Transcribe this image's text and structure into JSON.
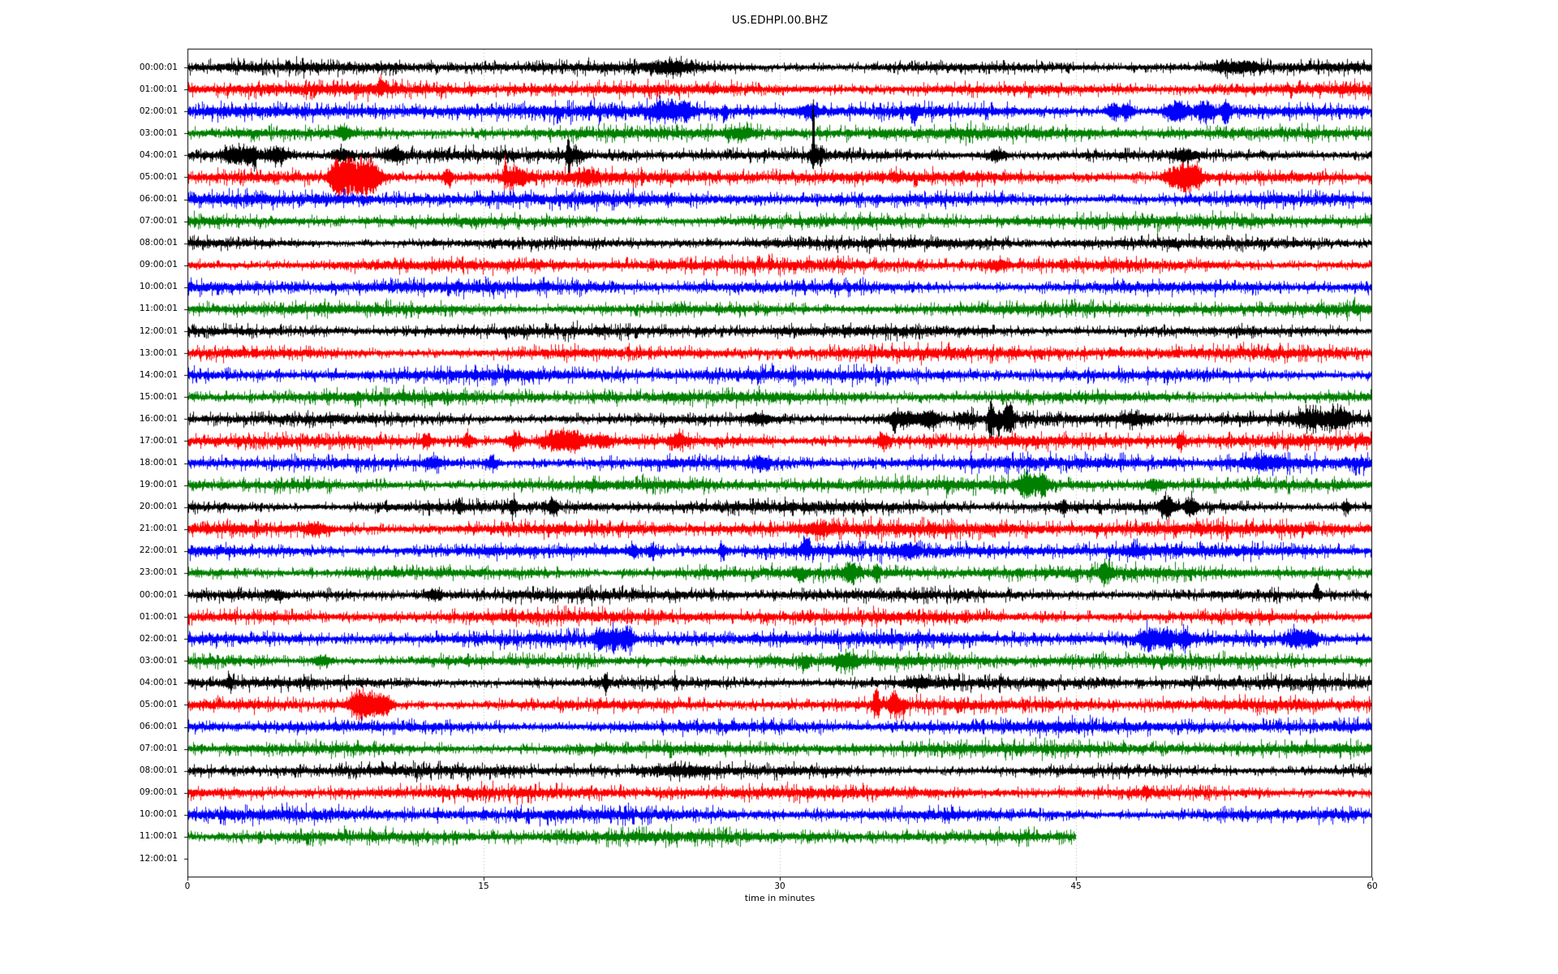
{
  "page": {
    "background": "#ffffff"
  },
  "chart_data": {
    "type": "line",
    "subtype": "helicorder-dayplot",
    "title": "US.EDHPI.00.BHZ",
    "xlabel": "time in minutes",
    "xlim": [
      0,
      60
    ],
    "x_ticks": [
      0,
      15,
      30,
      45,
      60
    ],
    "minutes_per_row": 60,
    "grid_minutes": [
      15,
      30,
      45
    ],
    "grid_style": "dotted-vertical",
    "grid_color": "#b0b0b0",
    "frame_color": "#000000",
    "text_color": "#000000",
    "trace_color_cycle": [
      "#000000",
      "#ff0000",
      "#0000ff",
      "#008000"
    ],
    "event_fields": [
      "minute",
      "half_amplitude_px",
      "sigma_minutes",
      "direction"
    ],
    "rows": [
      {
        "label": "00:00:01",
        "color": "#000000",
        "start": 0,
        "end": 60,
        "noise": 3.0,
        "events": [
          [
            24.5,
            4,
            0.8,
            0
          ],
          [
            53,
            4,
            0.8,
            0
          ]
        ]
      },
      {
        "label": "01:00:01",
        "color": "#ff0000",
        "start": 0,
        "end": 60,
        "noise": 3.4,
        "events": [
          [
            9.8,
            10,
            0.12,
            1
          ]
        ]
      },
      {
        "label": "02:00:01",
        "color": "#0000ff",
        "start": 0,
        "end": 60,
        "noise": 3.7,
        "events": [
          [
            24.0,
            7,
            0.3,
            0
          ],
          [
            25.1,
            7,
            0.3,
            0
          ],
          [
            27.2,
            9,
            0.1,
            -1
          ],
          [
            31.5,
            5,
            0.3,
            0
          ],
          [
            36.8,
            12,
            0.1,
            -1
          ],
          [
            46.9,
            7,
            0.2,
            0
          ],
          [
            47.6,
            7,
            0.2,
            0
          ],
          [
            50.1,
            8,
            0.35,
            0
          ],
          [
            51.5,
            7,
            0.35,
            0
          ],
          [
            52.6,
            10,
            0.12,
            0
          ]
        ]
      },
      {
        "label": "03:00:01",
        "color": "#008000",
        "start": 0,
        "end": 60,
        "noise": 3.4,
        "events": [
          [
            7.9,
            5,
            0.2,
            0
          ],
          [
            28.0,
            4,
            0.5,
            0
          ]
        ]
      },
      {
        "label": "04:00:01",
        "color": "#000000",
        "start": 0,
        "end": 60,
        "noise": 3.0,
        "events": [
          [
            2.2,
            5,
            0.3,
            0
          ],
          [
            3.0,
            7,
            0.4,
            0
          ],
          [
            3.4,
            11,
            0.07,
            -1
          ],
          [
            4.5,
            6,
            0.4,
            0
          ],
          [
            7.8,
            5,
            0.3,
            0
          ],
          [
            10.5,
            4,
            0.3,
            0
          ],
          [
            19.3,
            15,
            0.06,
            0
          ],
          [
            19.6,
            5,
            0.3,
            0
          ],
          [
            31.7,
            52,
            0.05,
            1
          ],
          [
            31.9,
            7,
            0.2,
            0
          ],
          [
            41.0,
            5,
            0.3,
            0
          ],
          [
            50.5,
            4,
            0.4,
            0
          ]
        ]
      },
      {
        "label": "05:00:01",
        "color": "#ff0000",
        "start": 0,
        "end": 60,
        "noise": 3.4,
        "events": [
          [
            7.6,
            12,
            0.25,
            0
          ],
          [
            8.3,
            15,
            0.5,
            0
          ],
          [
            9.3,
            13,
            0.4,
            0
          ],
          [
            13.2,
            6,
            0.15,
            0
          ],
          [
            16.1,
            17,
            0.05,
            1
          ],
          [
            16.7,
            7,
            0.4,
            0
          ],
          [
            20.3,
            4,
            0.3,
            0
          ],
          [
            49.9,
            7,
            0.3,
            0
          ],
          [
            50.6,
            13,
            0.3,
            0
          ],
          [
            51.2,
            7,
            0.2,
            0
          ]
        ]
      },
      {
        "label": "06:00:01",
        "color": "#0000ff",
        "start": 0,
        "end": 60,
        "noise": 3.5,
        "events": []
      },
      {
        "label": "07:00:01",
        "color": "#008000",
        "start": 0,
        "end": 60,
        "noise": 3.3,
        "events": []
      },
      {
        "label": "08:00:01",
        "color": "#000000",
        "start": 0,
        "end": 60,
        "noise": 2.9,
        "events": []
      },
      {
        "label": "09:00:01",
        "color": "#ff0000",
        "start": 0,
        "end": 60,
        "noise": 3.3,
        "events": [
          [
            41,
            3,
            0.4,
            0
          ]
        ]
      },
      {
        "label": "10:00:01",
        "color": "#0000ff",
        "start": 0,
        "end": 60,
        "noise": 3.5,
        "events": []
      },
      {
        "label": "11:00:01",
        "color": "#008000",
        "start": 0,
        "end": 60,
        "noise": 3.3,
        "events": []
      },
      {
        "label": "12:00:01",
        "color": "#000000",
        "start": 0,
        "end": 60,
        "noise": 3.0,
        "events": []
      },
      {
        "label": "13:00:01",
        "color": "#ff0000",
        "start": 0,
        "end": 60,
        "noise": 3.4,
        "events": []
      },
      {
        "label": "14:00:01",
        "color": "#0000ff",
        "start": 0,
        "end": 60,
        "noise": 3.5,
        "events": []
      },
      {
        "label": "15:00:01",
        "color": "#008000",
        "start": 0,
        "end": 60,
        "noise": 3.3,
        "events": []
      },
      {
        "label": "16:00:01",
        "color": "#000000",
        "start": 0,
        "end": 60,
        "noise": 3.1,
        "events": [
          [
            29,
            4,
            0.4,
            0
          ],
          [
            35.8,
            13,
            0.07,
            -1
          ],
          [
            36.3,
            6,
            0.5,
            0
          ],
          [
            37.6,
            7,
            0.3,
            0
          ],
          [
            39.5,
            4,
            0.3,
            0
          ],
          [
            40.7,
            17,
            0.12,
            0
          ],
          [
            41.1,
            15,
            0.1,
            -1
          ],
          [
            41.6,
            13,
            0.18,
            0
          ],
          [
            48,
            4,
            0.5,
            0
          ],
          [
            56.9,
            7,
            0.5,
            0
          ],
          [
            58.3,
            7,
            0.4,
            0
          ]
        ]
      },
      {
        "label": "17:00:01",
        "color": "#ff0000",
        "start": 0,
        "end": 60,
        "noise": 3.4,
        "events": [
          [
            12.1,
            5,
            0.15,
            0
          ],
          [
            14.2,
            6,
            0.2,
            0
          ],
          [
            16.6,
            8,
            0.25,
            0
          ],
          [
            18.6,
            8,
            0.5,
            0
          ],
          [
            19.6,
            7,
            0.4,
            0
          ],
          [
            21,
            5,
            0.3,
            0
          ],
          [
            24.9,
            6,
            0.2,
            0
          ],
          [
            35.3,
            6,
            0.2,
            0
          ],
          [
            50.3,
            8,
            0.12,
            0
          ]
        ]
      },
      {
        "label": "18:00:01",
        "color": "#0000ff",
        "start": 0,
        "end": 60,
        "noise": 3.6,
        "events": [
          [
            12.5,
            4,
            0.3,
            0
          ],
          [
            15.4,
            5,
            0.2,
            0
          ],
          [
            29,
            4,
            0.3,
            0
          ],
          [
            54.5,
            4,
            0.8,
            0
          ]
        ]
      },
      {
        "label": "19:00:01",
        "color": "#008000",
        "start": 0,
        "end": 60,
        "noise": 3.3,
        "events": [
          [
            38.5,
            6,
            0.08,
            -1
          ],
          [
            42.5,
            11,
            0.25,
            0
          ],
          [
            43.3,
            9,
            0.2,
            0
          ],
          [
            49,
            4,
            0.3,
            0
          ]
        ]
      },
      {
        "label": "20:00:01",
        "color": "#000000",
        "start": 0,
        "end": 60,
        "noise": 3.0,
        "events": [
          [
            13.8,
            5,
            0.12,
            0
          ],
          [
            16.5,
            6,
            0.12,
            0
          ],
          [
            18.5,
            8,
            0.15,
            0
          ],
          [
            44.4,
            7,
            0.1,
            0
          ],
          [
            49.6,
            9,
            0.22,
            0
          ],
          [
            50.8,
            8,
            0.18,
            0
          ],
          [
            58.7,
            7,
            0.12,
            0
          ]
        ]
      },
      {
        "label": "21:00:01",
        "color": "#ff0000",
        "start": 0,
        "end": 60,
        "noise": 3.8,
        "events": [
          [
            6.5,
            4,
            0.4,
            0
          ],
          [
            32,
            3,
            0.6,
            0
          ]
        ]
      },
      {
        "label": "22:00:01",
        "color": "#0000ff",
        "start": 0,
        "end": 60,
        "noise": 3.6,
        "events": [
          [
            22.6,
            5,
            0.15,
            0
          ],
          [
            23.5,
            5,
            0.15,
            0
          ],
          [
            27.1,
            6,
            0.1,
            0
          ],
          [
            31.3,
            9,
            0.18,
            1
          ],
          [
            36.5,
            4,
            0.3,
            0
          ],
          [
            48,
            4,
            0.3,
            0
          ]
        ]
      },
      {
        "label": "23:00:01",
        "color": "#008000",
        "start": 0,
        "end": 60,
        "noise": 3.3,
        "events": [
          [
            31.1,
            8,
            0.15,
            -1
          ],
          [
            33.6,
            7,
            0.3,
            0
          ],
          [
            34.9,
            8,
            0.1,
            0
          ],
          [
            46.5,
            9,
            0.18,
            0
          ]
        ]
      },
      {
        "label": "00:00:01",
        "color": "#000000",
        "start": 0,
        "end": 60,
        "noise": 3.0,
        "events": [
          [
            4.5,
            3,
            0.3,
            0
          ],
          [
            12.5,
            3,
            0.3,
            0
          ],
          [
            57.2,
            9,
            0.12,
            1
          ]
        ]
      },
      {
        "label": "01:00:01",
        "color": "#ff0000",
        "start": 0,
        "end": 60,
        "noise": 3.3,
        "events": []
      },
      {
        "label": "02:00:01",
        "color": "#0000ff",
        "start": 0,
        "end": 60,
        "noise": 3.6,
        "events": [
          [
            20.9,
            8,
            0.2,
            0
          ],
          [
            21.6,
            9,
            0.25,
            0
          ],
          [
            22.3,
            8,
            0.2,
            0
          ],
          [
            48.7,
            9,
            0.3,
            0
          ],
          [
            49.6,
            8,
            0.25,
            0
          ],
          [
            50.5,
            7,
            0.2,
            0
          ],
          [
            56.1,
            7,
            0.3,
            0
          ],
          [
            56.9,
            6,
            0.25,
            0
          ]
        ]
      },
      {
        "label": "03:00:01",
        "color": "#008000",
        "start": 0,
        "end": 60,
        "noise": 3.3,
        "events": [
          [
            6.8,
            4,
            0.3,
            0
          ],
          [
            31.3,
            9,
            0.12,
            -1
          ],
          [
            33.4,
            5,
            0.35,
            0
          ]
        ]
      },
      {
        "label": "04:00:01",
        "color": "#000000",
        "start": 0,
        "end": 60,
        "noise": 3.0,
        "events": [
          [
            2.1,
            5,
            0.12,
            0
          ],
          [
            21.2,
            7,
            0.08,
            0
          ],
          [
            24.7,
            6,
            0.07,
            0
          ],
          [
            37,
            3,
            0.4,
            0
          ]
        ]
      },
      {
        "label": "05:00:01",
        "color": "#ff0000",
        "start": 0,
        "end": 60,
        "noise": 3.3,
        "events": [
          [
            8.6,
            11,
            0.3,
            0
          ],
          [
            9.3,
            11,
            0.3,
            0
          ],
          [
            10.0,
            9,
            0.25,
            0
          ],
          [
            34.9,
            11,
            0.12,
            0
          ],
          [
            35.8,
            9,
            0.2,
            0
          ],
          [
            36.3,
            8,
            0.08,
            -1
          ]
        ]
      },
      {
        "label": "06:00:01",
        "color": "#0000ff",
        "start": 0,
        "end": 60,
        "noise": 3.5,
        "events": []
      },
      {
        "label": "07:00:01",
        "color": "#008000",
        "start": 0,
        "end": 60,
        "noise": 3.3,
        "events": []
      },
      {
        "label": "08:00:01",
        "color": "#000000",
        "start": 0,
        "end": 60,
        "noise": 3.1,
        "events": [
          [
            25,
            3,
            1.0,
            0
          ]
        ]
      },
      {
        "label": "09:00:01",
        "color": "#ff0000",
        "start": 0,
        "end": 60,
        "noise": 3.3,
        "events": [
          [
            48.6,
            5,
            0.08,
            0
          ]
        ]
      },
      {
        "label": "10:00:01",
        "color": "#0000ff",
        "start": 0,
        "end": 60,
        "noise": 3.5,
        "events": []
      },
      {
        "label": "11:00:01",
        "color": "#008000",
        "start": 0,
        "end": 45,
        "noise": 3.3,
        "events": []
      },
      {
        "label": "12:00:01",
        "color": null,
        "start": 0,
        "end": 0,
        "noise": 0,
        "events": []
      }
    ]
  }
}
